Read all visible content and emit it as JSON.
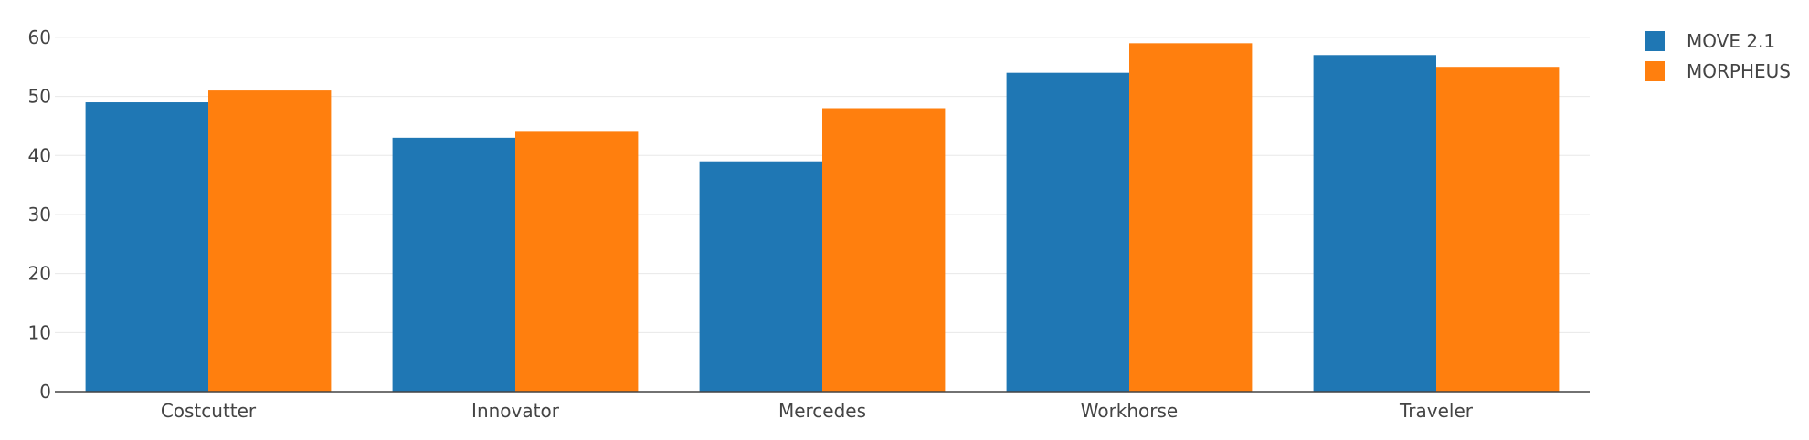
{
  "chart_data": {
    "type": "bar",
    "categories": [
      "Costcutter",
      "Innovator",
      "Mercedes",
      "Workhorse",
      "Traveler"
    ],
    "series": [
      {
        "name": "MOVE 2.1",
        "color": "#1f77b4",
        "values": [
          49,
          43,
          39,
          54,
          57
        ]
      },
      {
        "name": "MORPHEUS",
        "color": "#ff7f0e",
        "values": [
          51,
          44,
          48,
          59,
          55
        ]
      }
    ],
    "title": "",
    "xlabel": "",
    "ylabel": "",
    "ylim": [
      0,
      64
    ],
    "yticks": [
      0,
      10,
      20,
      30,
      40,
      50,
      60
    ],
    "grid": true,
    "legend_position": "top-right"
  }
}
